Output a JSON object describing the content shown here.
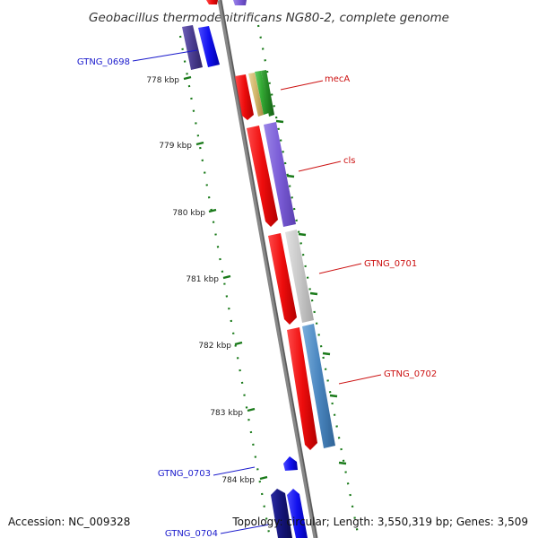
{
  "title": "Geobacillus thermodenitrificans NG80-2, complete genome",
  "footer": {
    "accession": "Accession: NC_009328",
    "summary": "Topology: circular; Length: 3,550,319 bp; Genes: 3,509"
  },
  "ticks": [
    {
      "label": "778 kbp"
    },
    {
      "label": "779 kbp"
    },
    {
      "label": "780 kbp"
    },
    {
      "label": "781 kbp"
    },
    {
      "label": "782 kbp"
    },
    {
      "label": "783 kbp"
    },
    {
      "label": "784 kbp"
    }
  ],
  "gene_labels": {
    "gtng_0698": "GTNG_0698",
    "meca": "mecA",
    "cls": "cls",
    "gtng_0701": "GTNG_0701",
    "gtng_0702": "GTNG_0702",
    "gtng_0703": "GTNG_0703",
    "gtng_0704": "GTNG_0704"
  },
  "colors": {
    "forward_strand": "#ee1111",
    "reverse_strand": "#1111ee",
    "gene_purple": "#7a5cd6",
    "gene_gray": "#c8c8c8",
    "gene_steelblue": "#4a86bf",
    "gene_green": "#33aa33",
    "backbone": "#888888",
    "ticks": "#1a7a1a"
  }
}
